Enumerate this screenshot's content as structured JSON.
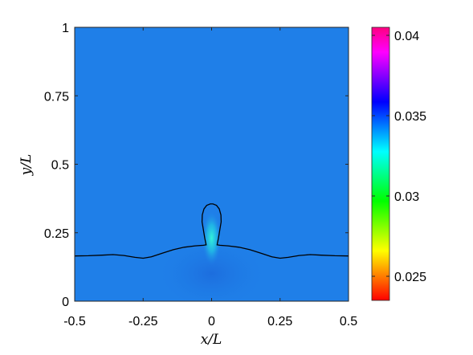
{
  "chart_data": {
    "type": "heatmap",
    "xlabel": "x/L",
    "ylabel": "y/L",
    "xlim": [
      -0.5,
      0.5
    ],
    "ylim": [
      0,
      1
    ],
    "x_ticks": [
      {
        "value": -0.5,
        "label": "-0.5"
      },
      {
        "value": -0.25,
        "label": "-0.25"
      },
      {
        "value": 0,
        "label": "0"
      },
      {
        "value": 0.25,
        "label": "0.25"
      },
      {
        "value": 0.5,
        "label": "0.5"
      }
    ],
    "y_ticks": [
      {
        "value": 0,
        "label": "0"
      },
      {
        "value": 0.25,
        "label": "0.25"
      },
      {
        "value": 0.5,
        "label": "0.5"
      },
      {
        "value": 0.75,
        "label": "0.75"
      },
      {
        "value": 1,
        "label": "1"
      }
    ],
    "colorbar": {
      "range": [
        0.0235,
        0.0405
      ],
      "ticks": [
        {
          "value": 0.025,
          "label": "0.025"
        },
        {
          "value": 0.03,
          "label": "0.03"
        },
        {
          "value": 0.035,
          "label": "0.035"
        },
        {
          "value": 0.04,
          "label": "0.04"
        }
      ],
      "colormap": [
        "#ff0000",
        "#ff8000",
        "#ffff00",
        "#80ff00",
        "#00ff00",
        "#00ff80",
        "#00ffff",
        "#0080ff",
        "#0000ff",
        "#8000ff",
        "#ff00ff",
        "#ff0080"
      ]
    },
    "field": {
      "background_value": 0.0341,
      "background_color": "#1f7fe8",
      "hotspot_x": 0,
      "hotspot_y": 0.23,
      "hotspot_color": "#33f2d9"
    },
    "interface": {
      "color": "#000000",
      "points": [
        [
          -0.5,
          0.165
        ],
        [
          -0.45,
          0.166
        ],
        [
          -0.4,
          0.168
        ],
        [
          -0.36,
          0.17
        ],
        [
          -0.32,
          0.167
        ],
        [
          -0.28,
          0.16
        ],
        [
          -0.25,
          0.157
        ],
        [
          -0.22,
          0.162
        ],
        [
          -0.18,
          0.175
        ],
        [
          -0.14,
          0.188
        ],
        [
          -0.1,
          0.197
        ],
        [
          -0.06,
          0.202
        ],
        [
          -0.03,
          0.204
        ],
        [
          -0.02,
          0.206
        ],
        [
          -0.025,
          0.23
        ],
        [
          -0.03,
          0.26
        ],
        [
          -0.035,
          0.29
        ],
        [
          -0.034,
          0.315
        ],
        [
          -0.028,
          0.337
        ],
        [
          -0.018,
          0.35
        ],
        [
          -0.005,
          0.355
        ],
        [
          0.005,
          0.355
        ],
        [
          0.018,
          0.35
        ],
        [
          0.028,
          0.337
        ],
        [
          0.034,
          0.315
        ],
        [
          0.035,
          0.29
        ],
        [
          0.03,
          0.26
        ],
        [
          0.025,
          0.23
        ],
        [
          0.02,
          0.206
        ],
        [
          0.03,
          0.204
        ],
        [
          0.06,
          0.202
        ],
        [
          0.1,
          0.197
        ],
        [
          0.14,
          0.188
        ],
        [
          0.18,
          0.175
        ],
        [
          0.22,
          0.162
        ],
        [
          0.25,
          0.157
        ],
        [
          0.28,
          0.16
        ],
        [
          0.32,
          0.167
        ],
        [
          0.36,
          0.17
        ],
        [
          0.4,
          0.168
        ],
        [
          0.45,
          0.166
        ],
        [
          0.5,
          0.165
        ]
      ]
    }
  }
}
